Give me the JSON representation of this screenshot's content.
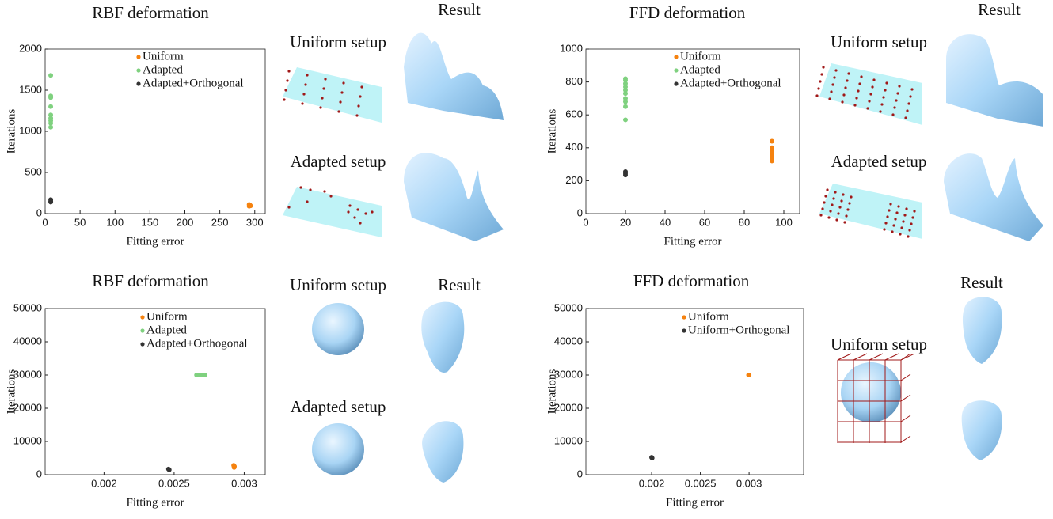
{
  "chart_data": [
    {
      "type": "scatter",
      "title": "RBF deformation",
      "x_label": "Fitting error",
      "y_label": "Iterations",
      "xlim": [
        0,
        315
      ],
      "ylim": [
        0,
        2000
      ],
      "xticks": [
        0,
        50,
        100,
        150,
        200,
        250,
        300
      ],
      "yticks": [
        0,
        500,
        1000,
        1500,
        2000
      ],
      "series": [
        {
          "name": "Uniform",
          "color": "#f5820f",
          "x": [
            292,
            293,
            294,
            292,
            293
          ],
          "y": [
            110,
            100,
            95,
            90,
            105
          ]
        },
        {
          "name": "Adapted",
          "color": "#7fd17f",
          "x": [
            8,
            8,
            8,
            8,
            8,
            8,
            8,
            8,
            8
          ],
          "y": [
            1680,
            1430,
            1410,
            1300,
            1200,
            1160,
            1130,
            1100,
            1050
          ]
        },
        {
          "name": "Adapted+Orthogonal",
          "color": "#333333",
          "x": [
            8,
            8,
            8
          ],
          "y": [
            170,
            150,
            140
          ]
        }
      ]
    },
    {
      "type": "scatter",
      "title": "FFD deformation",
      "x_label": "Fitting error",
      "y_label": "Iterations",
      "xlim": [
        0,
        108
      ],
      "ylim": [
        0,
        1000
      ],
      "xticks": [
        0,
        20,
        40,
        60,
        80,
        100
      ],
      "yticks": [
        0,
        200,
        400,
        600,
        800,
        1000
      ],
      "series": [
        {
          "name": "Uniform",
          "color": "#f5820f",
          "x": [
            94,
            94,
            94,
            94,
            94,
            94,
            94
          ],
          "y": [
            440,
            400,
            380,
            370,
            350,
            330,
            320
          ]
        },
        {
          "name": "Adapted",
          "color": "#7fd17f",
          "x": [
            20,
            20,
            20,
            20,
            20,
            20,
            20,
            20,
            20,
            20
          ],
          "y": [
            820,
            810,
            790,
            770,
            750,
            730,
            700,
            680,
            650,
            570
          ]
        },
        {
          "name": "Adapted+Orthogonal",
          "color": "#333333",
          "x": [
            20,
            20,
            20
          ],
          "y": [
            255,
            245,
            235
          ]
        }
      ]
    },
    {
      "type": "scatter",
      "title": "RBF deformation",
      "x_label": "Fitting error",
      "y_label": "Iterations",
      "xlim": [
        0.00158,
        0.00315
      ],
      "ylim": [
        0,
        50000
      ],
      "xticks": [
        0.002,
        0.0025,
        0.003
      ],
      "yticks": [
        0,
        10000,
        20000,
        30000,
        40000,
        50000
      ],
      "series": [
        {
          "name": "Uniform",
          "color": "#f5820f",
          "x": [
            0.002925,
            0.00293,
            0.002928
          ],
          "y": [
            2800,
            2500,
            2200
          ]
        },
        {
          "name": "Adapted",
          "color": "#7fd17f",
          "x": [
            0.00266,
            0.00268,
            0.0027,
            0.00272
          ],
          "y": [
            30000,
            30000,
            30000,
            30000
          ]
        },
        {
          "name": "Adapted+Orthogonal",
          "color": "#333333",
          "x": [
            0.00246,
            0.002465
          ],
          "y": [
            1700,
            1500
          ]
        }
      ]
    },
    {
      "type": "scatter",
      "title": "FFD deformation",
      "x_label": "Fitting error",
      "y_label": "Iterations",
      "xlim": [
        0.001325,
        0.00356
      ],
      "ylim": [
        0,
        50000
      ],
      "xticks": [
        0.002,
        0.0025,
        0.003
      ],
      "yticks": [
        0,
        10000,
        20000,
        30000,
        40000,
        50000
      ],
      "series": [
        {
          "name": "Uniform",
          "color": "#f5820f",
          "x": [
            0.002995,
            0.003
          ],
          "y": [
            30000,
            30000
          ]
        },
        {
          "name": "Uniform+Orthogonal",
          "color": "#333333",
          "x": [
            0.002,
            0.002005
          ],
          "y": [
            5200,
            5000
          ]
        }
      ]
    }
  ],
  "panels": [
    {
      "result": "Result",
      "uniform": "Uniform setup",
      "adapted": "Adapted setup"
    },
    {
      "result": "Result",
      "uniform": "Uniform setup",
      "adapted": "Adapted setup"
    },
    {
      "result": "Result",
      "uniform": "Uniform setup",
      "adapted": "Adapted setup"
    },
    {
      "result": "Result",
      "uniform": "Uniform setup"
    }
  ]
}
